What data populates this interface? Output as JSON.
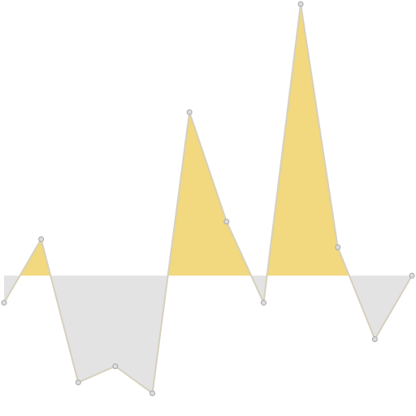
{
  "chart_data": {
    "type": "area",
    "title": "",
    "xlabel": "",
    "ylabel": "",
    "grid": false,
    "legend": "none",
    "baseline": 0,
    "x": [
      0,
      1,
      2,
      3,
      4,
      5,
      6,
      7,
      8,
      9,
      10,
      11
    ],
    "values": [
      -1.0,
      1.35,
      -3.95,
      -3.35,
      -4.35,
      6.05,
      2.0,
      -1.0,
      10.05,
      1.05,
      -2.35,
      0.0
    ],
    "xlim": [
      0,
      11
    ],
    "ylim": [
      -4.35,
      10.05
    ],
    "colors": {
      "positive_fill": "#f2d87e",
      "negative_fill": "#e3e3e3",
      "line": "#d6d0bd",
      "marker_fill": "#dcdcdc",
      "marker_stroke": "#a7a7a7"
    }
  }
}
